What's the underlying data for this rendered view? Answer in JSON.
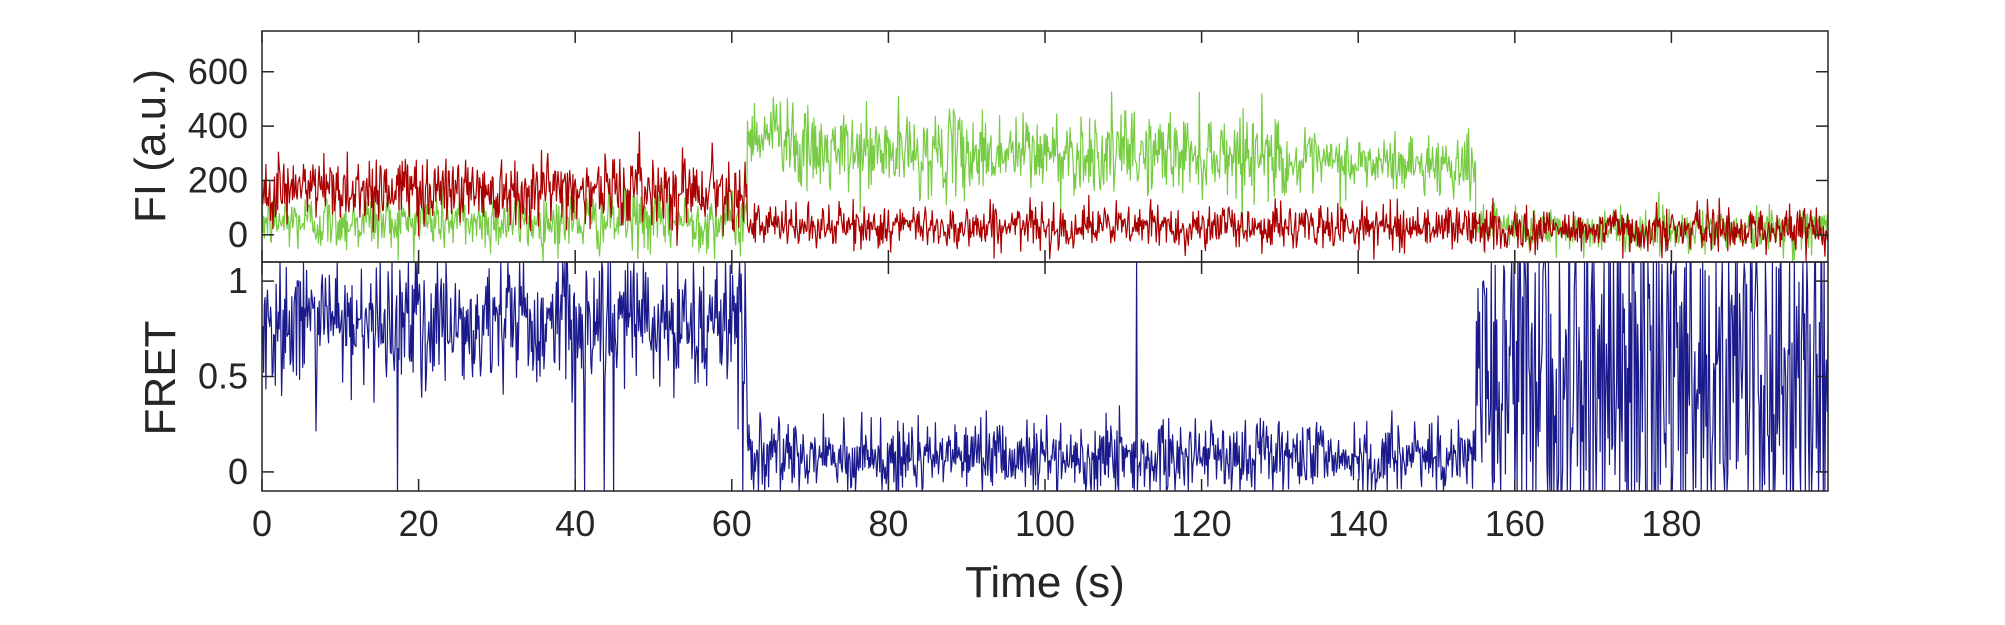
{
  "chart_data": [
    {
      "type": "line",
      "panel": "top",
      "xlabel": "",
      "ylabel": "FI (a.u.)",
      "xlim": [
        0,
        200
      ],
      "ylim": [
        -100,
        750
      ],
      "xticks": [
        0,
        20,
        40,
        60,
        80,
        100,
        120,
        140,
        160,
        180
      ],
      "yticks": [
        0,
        200,
        400,
        600
      ],
      "ytick_labels": [
        "0",
        "200",
        "400",
        "600"
      ],
      "sample_interval_s": 0.1,
      "series": [
        {
          "color": "#77cc44",
          "segments": [
            {
              "t_start": 0,
              "t_end": 62,
              "mean": 50,
              "noise": 55
            },
            {
              "t_start": 62,
              "t_end": 68,
              "mean": 380,
              "noise": 70
            },
            {
              "t_start": 68,
              "t_end": 130,
              "mean": 300,
              "noise": 75
            },
            {
              "t_start": 130,
              "t_end": 155,
              "mean": 260,
              "noise": 55
            },
            {
              "t_start": 155,
              "t_end": 200,
              "mean": 20,
              "noise": 40
            }
          ]
        },
        {
          "color": "#aa0000",
          "segments": [
            {
              "t_start": 0,
              "t_end": 62,
              "mean": 170,
              "noise": 65
            },
            {
              "t_start": 62,
              "t_end": 155,
              "mean": 30,
              "noise": 40
            },
            {
              "t_start": 155,
              "t_end": 200,
              "mean": 20,
              "noise": 40
            }
          ]
        }
      ]
    },
    {
      "type": "line",
      "panel": "bottom",
      "xlabel": "Time (s)",
      "ylabel": "FRET",
      "xlim": [
        0,
        200
      ],
      "ylim": [
        -0.1,
        1.1
      ],
      "xticks": [
        0,
        20,
        40,
        60,
        80,
        100,
        120,
        140,
        160,
        180
      ],
      "xtick_labels": [
        "0",
        "20",
        "40",
        "60",
        "80",
        "100",
        "120",
        "140",
        "160",
        "180"
      ],
      "yticks": [
        0,
        0.5,
        1
      ],
      "ytick_labels": [
        "0",
        "0.5",
        "1"
      ],
      "sample_interval_s": 0.1,
      "series": [
        {
          "color": "#1a1a8c",
          "segments": [
            {
              "t_start": 0,
              "t_end": 62,
              "mean": 0.78,
              "noise": 0.18,
              "dropout_rate": 0.02
            },
            {
              "t_start": 62,
              "t_end": 155,
              "mean": 0.08,
              "noise": 0.1,
              "spike_rate": 0.004
            },
            {
              "t_start": 155,
              "t_end": 200,
              "mean": 0.5,
              "noise": 0.55
            }
          ]
        }
      ]
    }
  ]
}
